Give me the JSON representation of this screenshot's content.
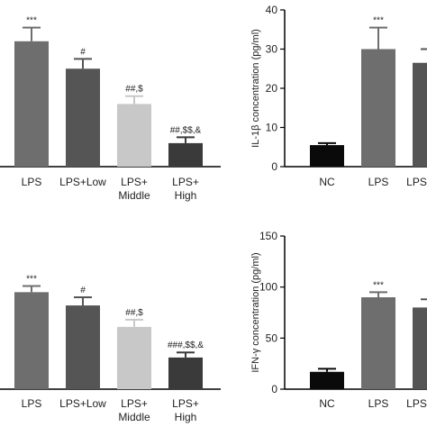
{
  "colors": {
    "NC": "#0a0a0a",
    "LPS": "#6e6e6e",
    "LPS+Low": "#555555",
    "LPS+Middle": "#c8c8c8",
    "LPS+High": "#3a3a3a",
    "axis": "#000000",
    "annotation": "#555555"
  },
  "chart_data": [
    {
      "type": "bar",
      "panel": "top-left",
      "categories": [
        "LPS",
        "LPS+Low",
        "LPS+\nMiddle",
        "LPS+\nHigh"
      ],
      "category_keys": [
        "LPS",
        "LPS+Low",
        "LPS+Middle",
        "LPS+High"
      ],
      "values": [
        32,
        25,
        16,
        6
      ],
      "errors": [
        3.5,
        2.5,
        2.0,
        1.5
      ],
      "annotations": [
        "***",
        "#",
        "##,$",
        "##,$$,&"
      ],
      "ylim": [
        0,
        40
      ],
      "yticks": [],
      "ylabel": "",
      "title": "",
      "xlabel": ""
    },
    {
      "type": "bar",
      "panel": "top-right",
      "categories": [
        "NC",
        "LPS",
        "LPS+Low"
      ],
      "category_keys": [
        "NC",
        "LPS",
        "LPS+Low"
      ],
      "values": [
        5.5,
        30,
        26.5
      ],
      "errors": [
        0.5,
        5.5,
        3.5
      ],
      "annotations": [
        "",
        "***",
        "#"
      ],
      "ylim": [
        0,
        40
      ],
      "yticks": [
        0,
        10,
        20,
        30,
        40
      ],
      "ylabel": "IL-1β concentration (pg/ml)",
      "title": "",
      "xlabel": ""
    },
    {
      "type": "bar",
      "panel": "bottom-left",
      "categories": [
        "LPS",
        "LPS+Low",
        "LPS+\nMiddle",
        "LPS+\nHigh"
      ],
      "category_keys": [
        "LPS",
        "LPS+Low",
        "LPS+Middle",
        "LPS+High"
      ],
      "values": [
        95,
        82,
        61,
        31
      ],
      "errors": [
        6,
        8,
        7,
        5
      ],
      "annotations": [
        "***",
        "#",
        "##,$",
        "###,$$,&"
      ],
      "ylim": [
        0,
        150
      ],
      "yticks": [],
      "ylabel": "",
      "title": "",
      "xlabel": ""
    },
    {
      "type": "bar",
      "panel": "bottom-right",
      "categories": [
        "NC",
        "LPS",
        "LPS+Low"
      ],
      "category_keys": [
        "NC",
        "LPS",
        "LPS+Low"
      ],
      "values": [
        17,
        90,
        80
      ],
      "errors": [
        3,
        5,
        8
      ],
      "annotations": [
        "",
        "***",
        "#"
      ],
      "ylim": [
        0,
        150
      ],
      "yticks": [
        0,
        50,
        100,
        150
      ],
      "ylabel": "IFN-γ concentration (pg/ml)",
      "title": "",
      "xlabel": ""
    }
  ]
}
